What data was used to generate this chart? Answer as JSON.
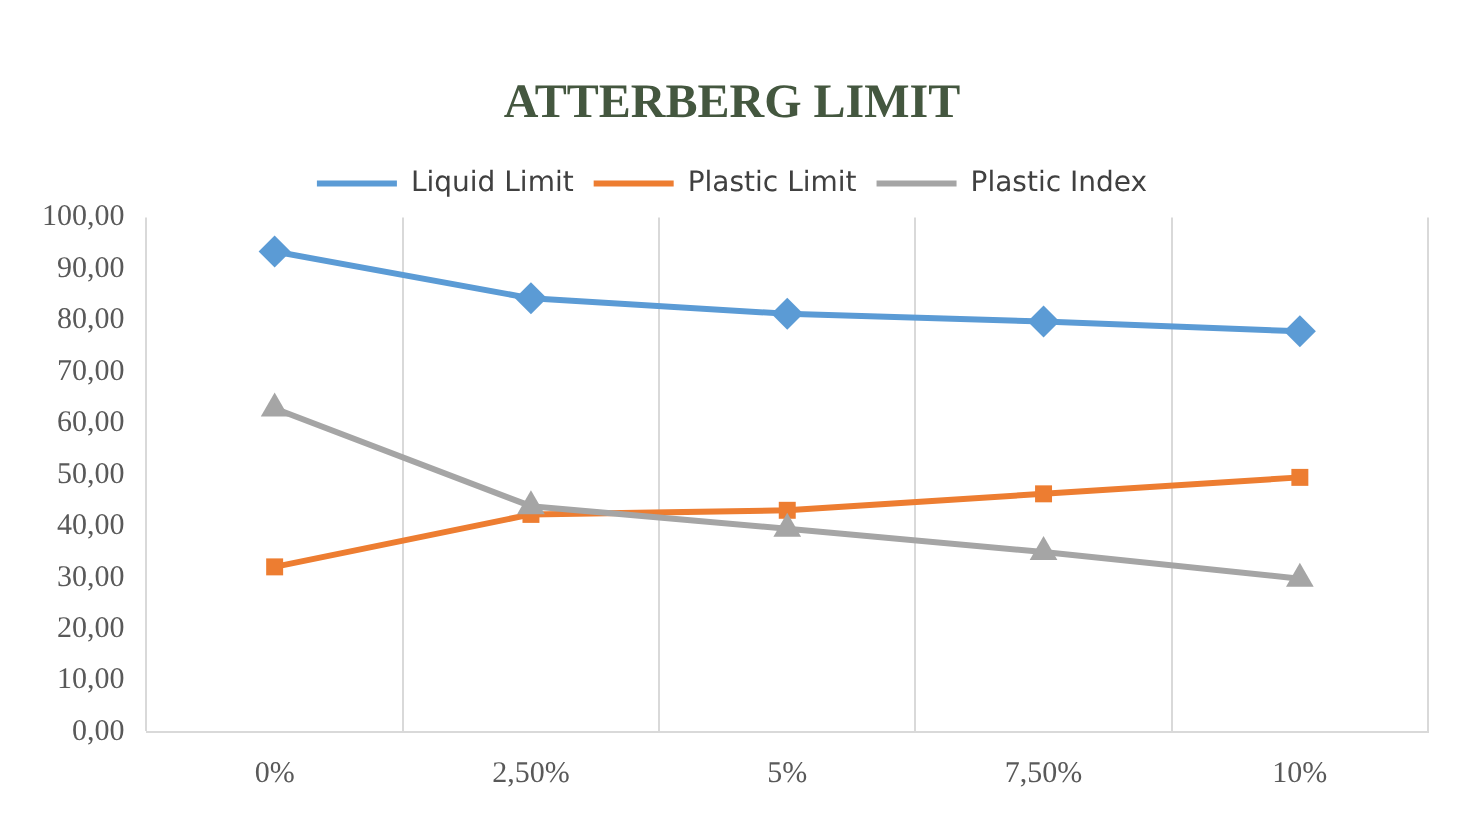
{
  "chart_data": {
    "type": "line",
    "title": "ATTERBERG LIMIT",
    "categories": [
      "0%",
      "2,50%",
      "5%",
      "7,50%",
      "10%"
    ],
    "series": [
      {
        "name": "Liquid Limit",
        "color": "#5b9bd5",
        "marker": "diamond",
        "values": [
          93.4,
          84.3,
          81.3,
          79.8,
          77.9
        ]
      },
      {
        "name": "Plastic Limit",
        "color": "#ed7d31",
        "marker": "square",
        "values": [
          32.1,
          42.3,
          43.1,
          46.3,
          49.5
        ]
      },
      {
        "name": "Plastic Index",
        "color": "#a5a5a5",
        "marker": "triangle",
        "values": [
          62.9,
          43.9,
          39.5,
          35.0,
          29.8
        ]
      }
    ],
    "ylim": [
      0,
      100
    ],
    "yticks": [
      {
        "value": 0,
        "label": "0,00"
      },
      {
        "value": 10,
        "label": "10,00"
      },
      {
        "value": 20,
        "label": "20,00"
      },
      {
        "value": 30,
        "label": "30,00"
      },
      {
        "value": 40,
        "label": "40,00"
      },
      {
        "value": 50,
        "label": "50,00"
      },
      {
        "value": 60,
        "label": "60,00"
      },
      {
        "value": 70,
        "label": "70,00"
      },
      {
        "value": 80,
        "label": "80,00"
      },
      {
        "value": 90,
        "label": "90,00"
      },
      {
        "value": 100,
        "label": "100,00"
      }
    ],
    "grid": "x",
    "legend": "top",
    "line_style": "solid"
  }
}
